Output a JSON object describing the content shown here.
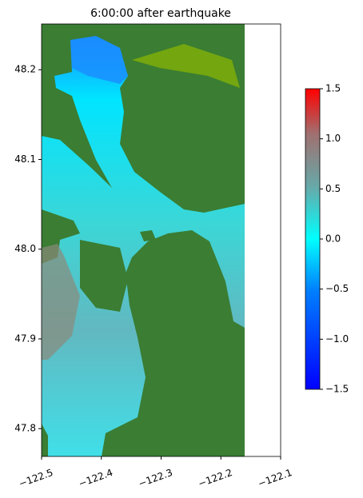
{
  "chart_data": {
    "type": "map",
    "title": "6:00:00 after earthquake",
    "xlim": [
      -122.5,
      -122.1
    ],
    "xticks": [
      {
        "value": -122.5,
        "label": "−122.5"
      },
      {
        "value": -122.4,
        "label": "−122.4"
      },
      {
        "value": -122.3,
        "label": "−122.3"
      },
      {
        "value": -122.2,
        "label": "−122.2"
      },
      {
        "value": -122.1,
        "label": "−122.1"
      }
    ],
    "ylim": [
      47.769,
      48.251
    ],
    "yticks": [
      47.8,
      47.9,
      {
        "value": 48.0,
        "label": "48.0"
      },
      48.1,
      48.2
    ],
    "clim": [
      -1.5,
      1.5
    ],
    "cticks": [
      {
        "value": -1.5,
        "label": "−1.5"
      },
      {
        "value": -1.0,
        "label": "−1.0"
      },
      {
        "value": -0.5,
        "label": "−0.5"
      },
      {
        "value": 0.0,
        "label": "0.0"
      },
      0.5,
      {
        "value": 1.0,
        "label": "1.0"
      },
      1.5
    ]
  }
}
